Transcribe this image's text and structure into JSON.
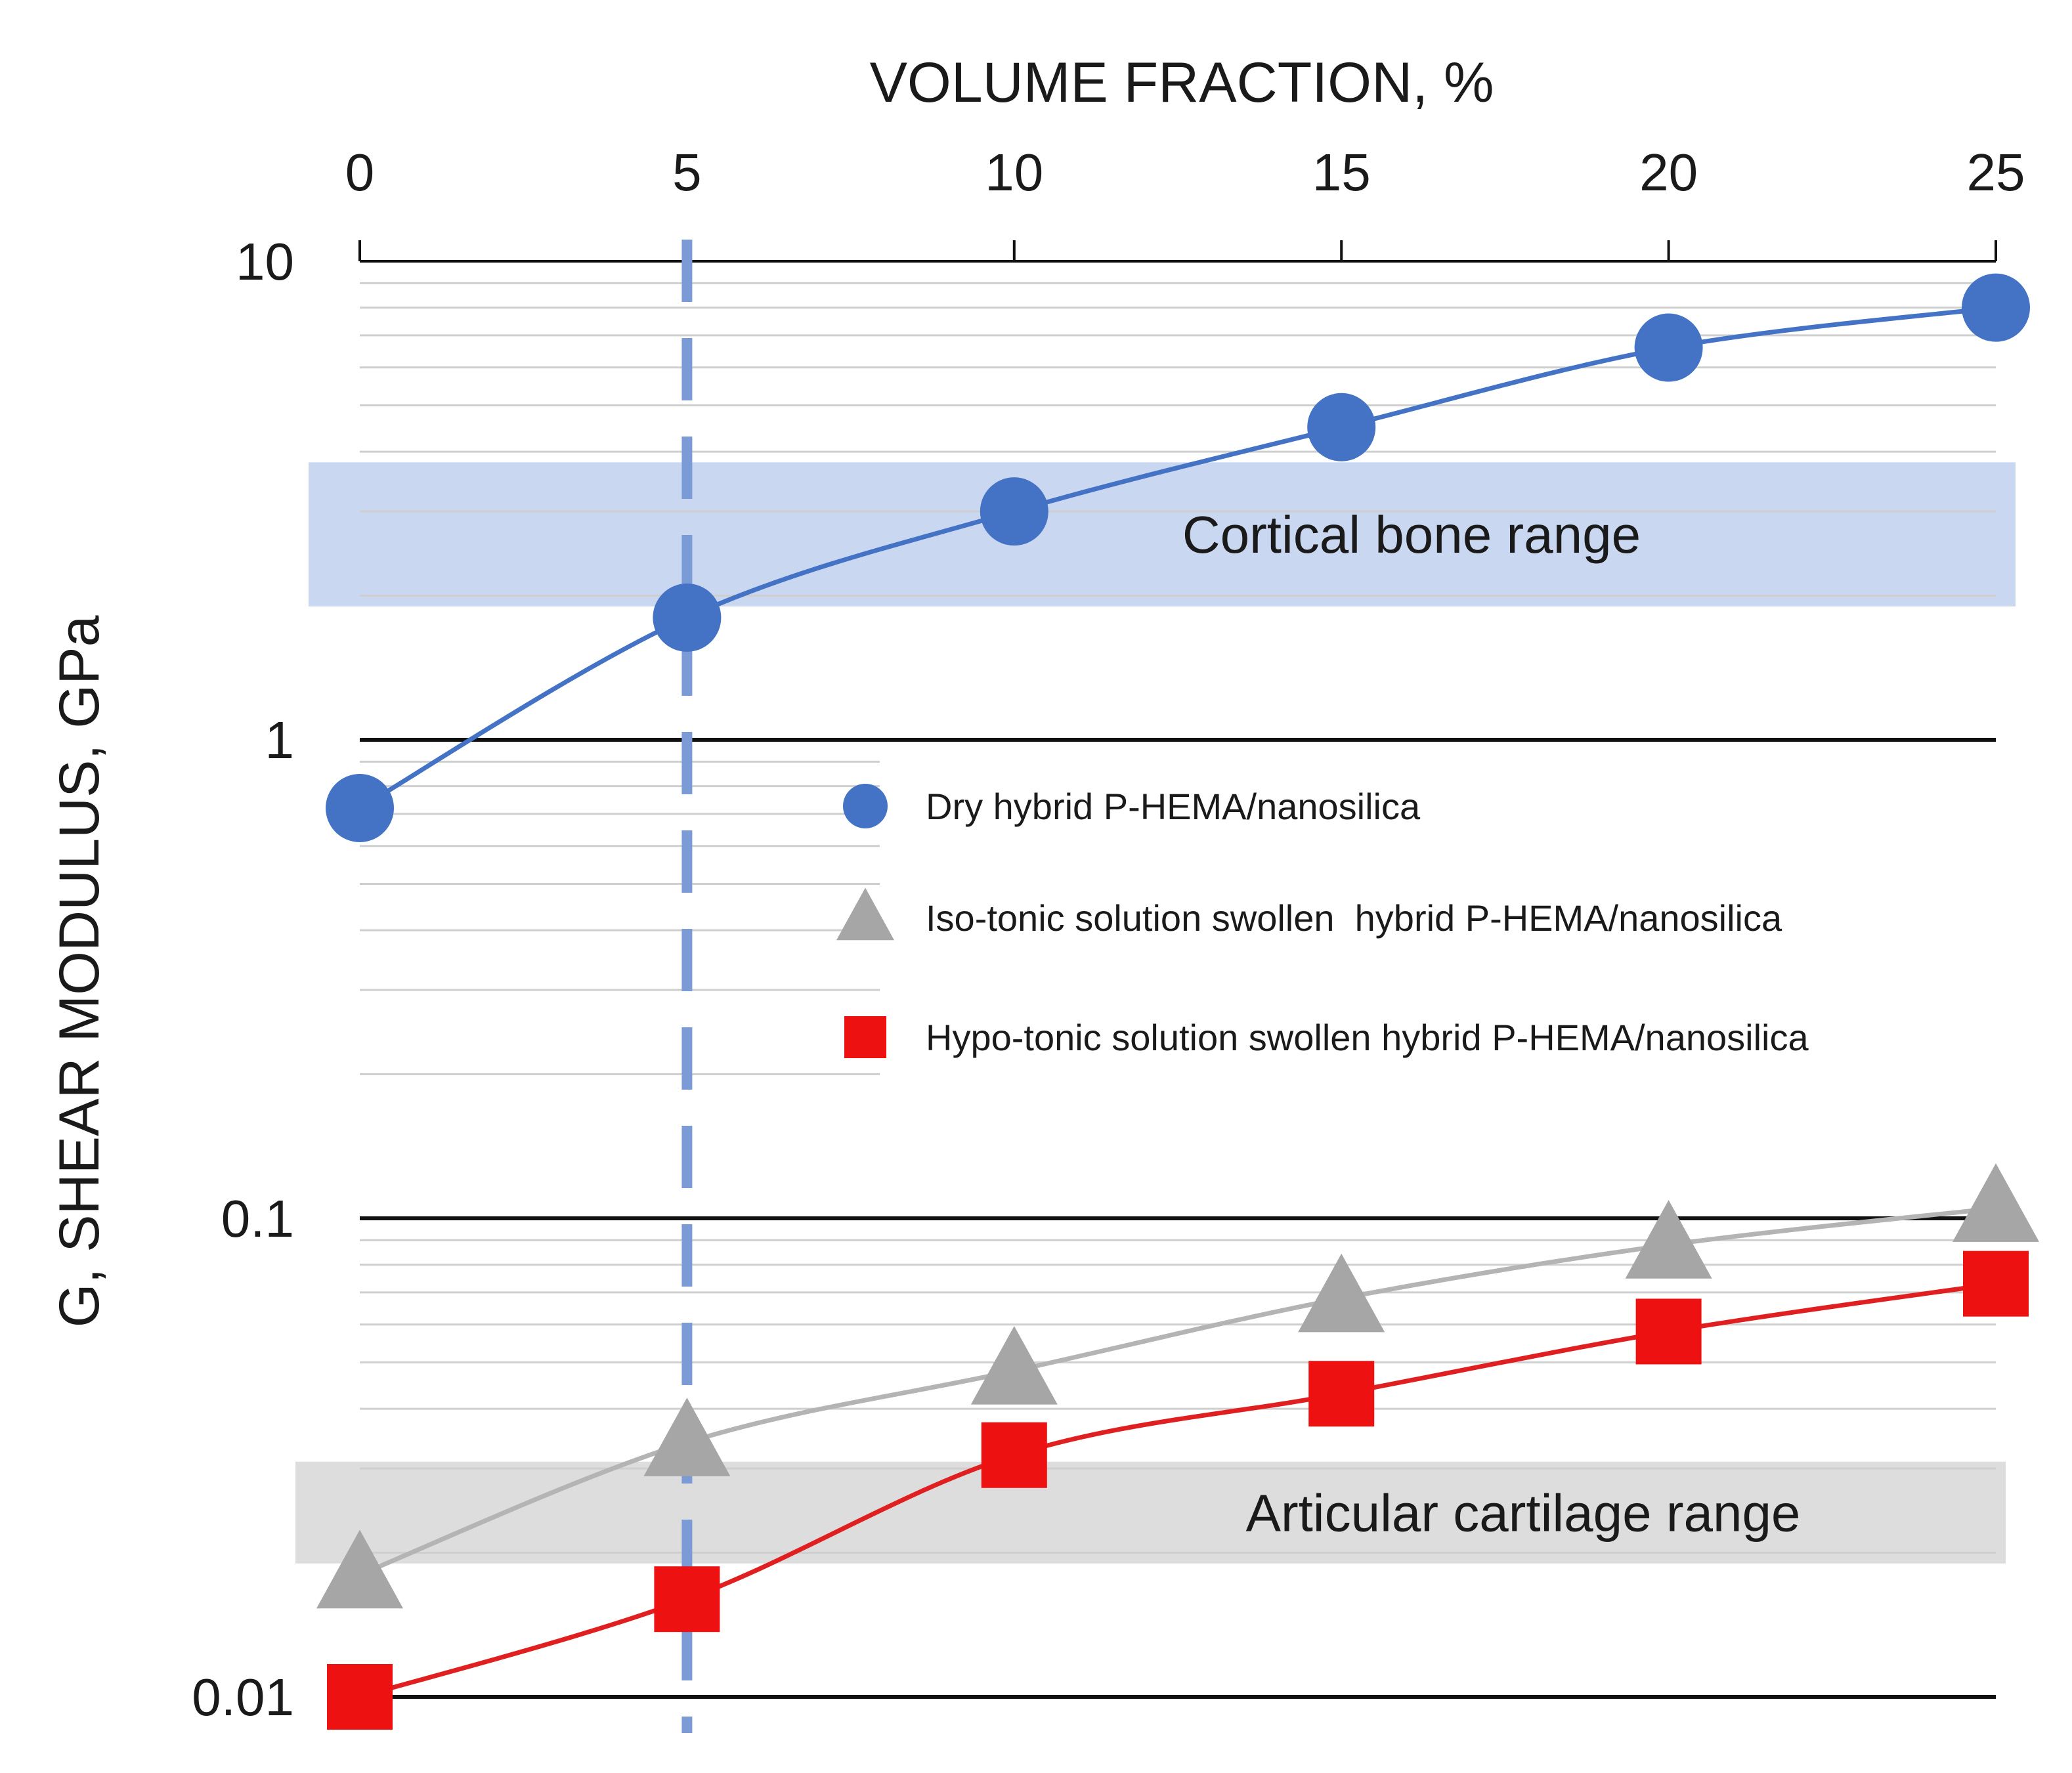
{
  "chart_data": {
    "type": "line",
    "xlabel": "VOLUME FRACTION, %",
    "ylabel": "G, SHEAR MODULUS, GPa",
    "x_axis_position": "top",
    "y_scale": "log",
    "xlim": [
      0,
      25
    ],
    "ylim": [
      0.01,
      10
    ],
    "x_ticks": [
      {
        "value": 0,
        "label": "0"
      },
      {
        "value": 5,
        "label": "5"
      },
      {
        "value": 10,
        "label": "10"
      },
      {
        "value": 15,
        "label": "15"
      },
      {
        "value": 20,
        "label": "20"
      },
      {
        "value": 25,
        "label": "25"
      }
    ],
    "y_ticks": [
      {
        "value": 10,
        "label": "10"
      },
      {
        "value": 1,
        "label": "1"
      },
      {
        "value": 0.1,
        "label": "0.1"
      },
      {
        "value": 0.01,
        "label": "0.01"
      }
    ],
    "vertical_reference_line": {
      "x": 5,
      "style": "dashed",
      "color": "#7b9bd6"
    },
    "bands": [
      {
        "label": "Cortical bone range",
        "y_range": [
          1.9,
          3.8
        ],
        "color": "#c4d3ef"
      },
      {
        "label": "Articular cartilage range",
        "y_range": [
          0.019,
          0.031
        ],
        "color": "#d9d9d9"
      }
    ],
    "series": [
      {
        "name": "Dry hybrid P-HEMA/nanosilica",
        "marker": "circle",
        "color": "#4472c4",
        "x": [
          0,
          5,
          10,
          15,
          20,
          25
        ],
        "values": [
          0.72,
          1.8,
          3.0,
          4.5,
          6.6,
          8.0
        ]
      },
      {
        "name": "Iso-tonic solution swollen  hybrid P-HEMA/nanosilica",
        "marker": "triangle",
        "color": "#a6a6a6",
        "line_color": "#b4b4b4",
        "x": [
          0,
          5,
          10,
          15,
          20,
          25
        ],
        "values": [
          0.018,
          0.034,
          0.048,
          0.068,
          0.088,
          0.105
        ]
      },
      {
        "name": "Hypo-tonic solution swollen hybrid P-HEMA/nanosilica",
        "marker": "square",
        "color": "#ee1111",
        "line_color": "#e02020",
        "x": [
          0,
          5,
          10,
          15,
          20,
          25
        ],
        "values": [
          0.01,
          0.016,
          0.032,
          0.043,
          0.058,
          0.073
        ]
      }
    ],
    "legend": {
      "position": "center"
    }
  }
}
